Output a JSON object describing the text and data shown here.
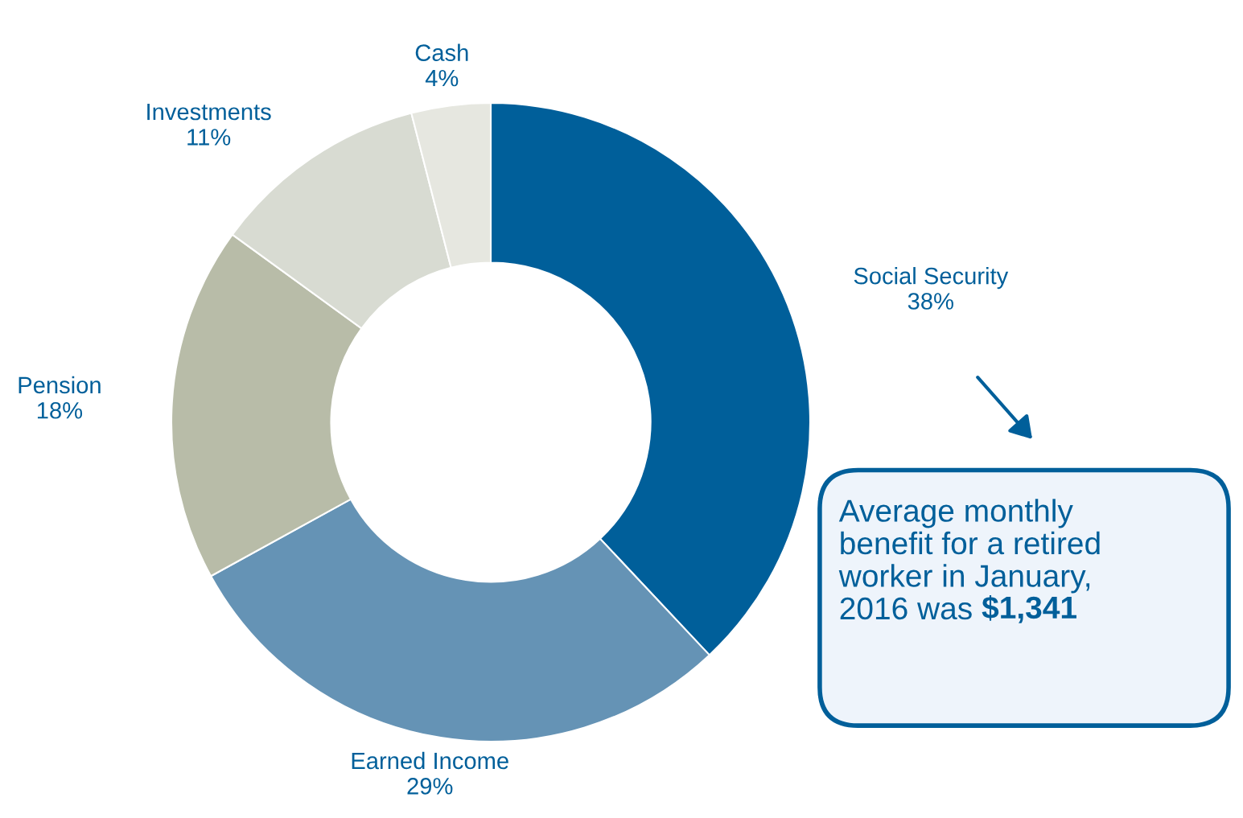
{
  "chart_data": {
    "type": "donut",
    "categories": [
      "Social Security",
      "Earned Income",
      "Pension",
      "Investments",
      "Cash"
    ],
    "values": [
      38,
      29,
      18,
      11,
      4
    ],
    "value_labels": [
      "38%",
      "29%",
      "18%",
      "11%",
      "4%"
    ],
    "legend": false,
    "colors": [
      "#005f9a",
      "#6593b5",
      "#b8bca8",
      "#d8dbd2",
      "#e6e7e0"
    ],
    "annotations": [
      "Average monthly\nbenefit for a retired\nworker in January,\n2016 was $1,341"
    ]
  }
}
